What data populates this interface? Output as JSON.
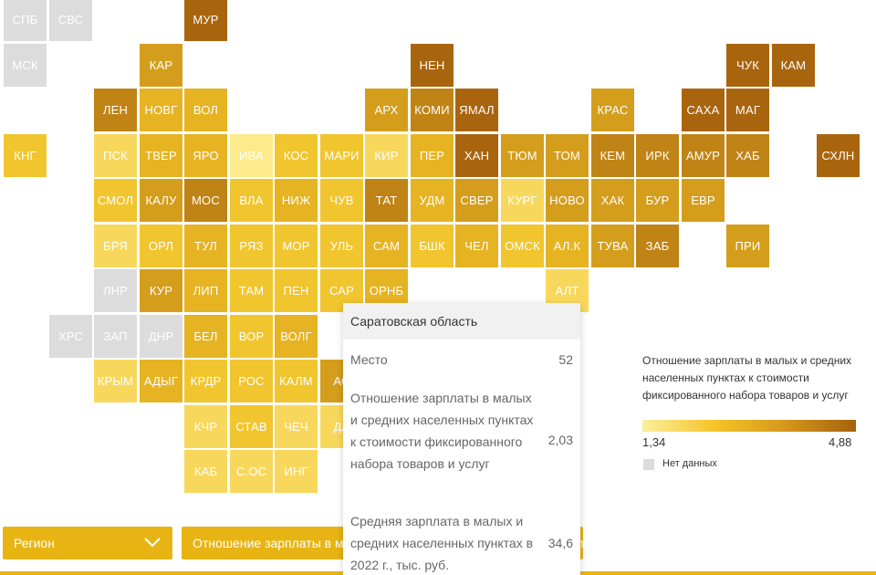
{
  "chart_data": {
    "type": "tile-map",
    "metric": "Отношение зарплаты в малых и средних населенных пунктах к стоимости фиксированного набора товаров и услуг",
    "scale_min": 1.34,
    "scale_max": 4.88,
    "colors": {
      "c0": "#dcdcdc",
      "c1": "#fcea8c",
      "c2": "#f8d85c",
      "c3": "#f1c52e",
      "c4": "#e6b322",
      "c5": "#d49e1c",
      "c6": "#c08316",
      "c7": "#a9640e"
    },
    "tiles": [
      {
        "label": "СПБ",
        "col": 0,
        "row": 0,
        "level": 0
      },
      {
        "label": "СВС",
        "col": 1,
        "row": 0,
        "level": 0
      },
      {
        "label": "МУР",
        "col": 4,
        "row": 0,
        "level": 7
      },
      {
        "label": "МСК",
        "col": 0,
        "row": 1,
        "level": 0
      },
      {
        "label": "КАР",
        "col": 3,
        "row": 1,
        "level": 5
      },
      {
        "label": "НЕН",
        "col": 9,
        "row": 1,
        "level": 7
      },
      {
        "label": "ЧУК",
        "col": 16,
        "row": 1,
        "level": 7
      },
      {
        "label": "КАМ",
        "col": 17,
        "row": 1,
        "level": 7
      },
      {
        "label": "ЛЕН",
        "col": 2,
        "row": 2,
        "level": 6
      },
      {
        "label": "НОВГ",
        "col": 3,
        "row": 2,
        "level": 4
      },
      {
        "label": "ВОЛ",
        "col": 4,
        "row": 2,
        "level": 4
      },
      {
        "label": "АРХ",
        "col": 8,
        "row": 2,
        "level": 5
      },
      {
        "label": "КОМИ",
        "col": 9,
        "row": 2,
        "level": 6
      },
      {
        "label": "ЯМАЛ",
        "col": 10,
        "row": 2,
        "level": 7
      },
      {
        "label": "КРАС",
        "col": 13,
        "row": 2,
        "level": 5
      },
      {
        "label": "САХА",
        "col": 15,
        "row": 2,
        "level": 7
      },
      {
        "label": "МАГ",
        "col": 16,
        "row": 2,
        "level": 7
      },
      {
        "label": "КНГ",
        "col": 0,
        "row": 3,
        "level": 3
      },
      {
        "label": "ПСК",
        "col": 2,
        "row": 3,
        "level": 2
      },
      {
        "label": "ТВЕР",
        "col": 3,
        "row": 3,
        "level": 4
      },
      {
        "label": "ЯРО",
        "col": 4,
        "row": 3,
        "level": 4
      },
      {
        "label": "ИВА",
        "col": 5,
        "row": 3,
        "level": 1
      },
      {
        "label": "КОС",
        "col": 6,
        "row": 3,
        "level": 3
      },
      {
        "label": "МАРИ",
        "col": 7,
        "row": 3,
        "level": 3
      },
      {
        "label": "КИР",
        "col": 8,
        "row": 3,
        "level": 2
      },
      {
        "label": "ПЕР",
        "col": 9,
        "row": 3,
        "level": 4
      },
      {
        "label": "ХАН",
        "col": 10,
        "row": 3,
        "level": 7
      },
      {
        "label": "ТЮМ",
        "col": 11,
        "row": 3,
        "level": 5
      },
      {
        "label": "ТОМ",
        "col": 12,
        "row": 3,
        "level": 5
      },
      {
        "label": "КЕМ",
        "col": 13,
        "row": 3,
        "level": 6
      },
      {
        "label": "ИРК",
        "col": 14,
        "row": 3,
        "level": 6
      },
      {
        "label": "АМУР",
        "col": 15,
        "row": 3,
        "level": 6
      },
      {
        "label": "ХАБ",
        "col": 16,
        "row": 3,
        "level": 6
      },
      {
        "label": "СХЛН",
        "col": 18,
        "row": 3,
        "level": 7
      },
      {
        "label": "СМОЛ",
        "col": 2,
        "row": 4,
        "level": 3
      },
      {
        "label": "КАЛУ",
        "col": 3,
        "row": 4,
        "level": 5
      },
      {
        "label": "МОС",
        "col": 4,
        "row": 4,
        "level": 6
      },
      {
        "label": "ВЛА",
        "col": 5,
        "row": 4,
        "level": 3
      },
      {
        "label": "НИЖ",
        "col": 6,
        "row": 4,
        "level": 4
      },
      {
        "label": "ЧУВ",
        "col": 7,
        "row": 4,
        "level": 3
      },
      {
        "label": "ТАТ",
        "col": 8,
        "row": 4,
        "level": 6
      },
      {
        "label": "УДМ",
        "col": 9,
        "row": 4,
        "level": 4
      },
      {
        "label": "СВЕР",
        "col": 10,
        "row": 4,
        "level": 5
      },
      {
        "label": "КУРГ",
        "col": 11,
        "row": 4,
        "level": 2
      },
      {
        "label": "НОВО",
        "col": 12,
        "row": 4,
        "level": 5
      },
      {
        "label": "ХАК",
        "col": 13,
        "row": 4,
        "level": 5
      },
      {
        "label": "БУР",
        "col": 14,
        "row": 4,
        "level": 5
      },
      {
        "label": "ЕВР",
        "col": 15,
        "row": 4,
        "level": 5
      },
      {
        "label": "БРЯ",
        "col": 2,
        "row": 5,
        "level": 2
      },
      {
        "label": "ОРЛ",
        "col": 3,
        "row": 5,
        "level": 3
      },
      {
        "label": "ТУЛ",
        "col": 4,
        "row": 5,
        "level": 4
      },
      {
        "label": "РЯЗ",
        "col": 5,
        "row": 5,
        "level": 3
      },
      {
        "label": "МОР",
        "col": 6,
        "row": 5,
        "level": 3
      },
      {
        "label": "УЛЬ",
        "col": 7,
        "row": 5,
        "level": 3
      },
      {
        "label": "САМ",
        "col": 8,
        "row": 5,
        "level": 4
      },
      {
        "label": "БШК",
        "col": 9,
        "row": 5,
        "level": 3
      },
      {
        "label": "ЧЕЛ",
        "col": 10,
        "row": 5,
        "level": 4
      },
      {
        "label": "ОМСК",
        "col": 11,
        "row": 5,
        "level": 3
      },
      {
        "label": "АЛ.К",
        "col": 12,
        "row": 5,
        "level": 4
      },
      {
        "label": "ТУВА",
        "col": 13,
        "row": 5,
        "level": 5
      },
      {
        "label": "ЗАБ",
        "col": 14,
        "row": 5,
        "level": 6
      },
      {
        "label": "ПРИ",
        "col": 16,
        "row": 5,
        "level": 5
      },
      {
        "label": "ЛНР",
        "col": 2,
        "row": 6,
        "level": 0
      },
      {
        "label": "КУР",
        "col": 3,
        "row": 6,
        "level": 5
      },
      {
        "label": "ЛИП",
        "col": 4,
        "row": 6,
        "level": 4
      },
      {
        "label": "ТАМ",
        "col": 5,
        "row": 6,
        "level": 3
      },
      {
        "label": "ПЕН",
        "col": 6,
        "row": 6,
        "level": 3
      },
      {
        "label": "САР",
        "col": 7,
        "row": 6,
        "level": 3
      },
      {
        "label": "ОРНБ",
        "col": 8,
        "row": 6,
        "level": 4
      },
      {
        "label": "АЛТ",
        "col": 12,
        "row": 6,
        "level": 2
      },
      {
        "label": "ХРС",
        "col": 1,
        "row": 7,
        "level": 0
      },
      {
        "label": "ЗАП",
        "col": 2,
        "row": 7,
        "level": 0
      },
      {
        "label": "ДНР",
        "col": 3,
        "row": 7,
        "level": 0
      },
      {
        "label": "БЕЛ",
        "col": 4,
        "row": 7,
        "level": 4
      },
      {
        "label": "ВОР",
        "col": 5,
        "row": 7,
        "level": 3
      },
      {
        "label": "ВОЛГ",
        "col": 6,
        "row": 7,
        "level": 4
      },
      {
        "label": "КРЫМ",
        "col": 2,
        "row": 8,
        "level": 2
      },
      {
        "label": "АДЫГ",
        "col": 3,
        "row": 8,
        "level": 4
      },
      {
        "label": "КРДР",
        "col": 4,
        "row": 8,
        "level": 3
      },
      {
        "label": "РОС",
        "col": 5,
        "row": 8,
        "level": 3
      },
      {
        "label": "КАЛМ",
        "col": 6,
        "row": 8,
        "level": 3
      },
      {
        "label": "АС",
        "col": 7,
        "row": 8,
        "level": 5
      },
      {
        "label": "КЧР",
        "col": 4,
        "row": 9,
        "level": 2
      },
      {
        "label": "СТАВ",
        "col": 5,
        "row": 9,
        "level": 3
      },
      {
        "label": "ЧЕЧ",
        "col": 6,
        "row": 9,
        "level": 2
      },
      {
        "label": "ДА",
        "col": 7,
        "row": 9,
        "level": 2
      },
      {
        "label": "КАБ",
        "col": 4,
        "row": 10,
        "level": 2
      },
      {
        "label": "С.ОС",
        "col": 5,
        "row": 10,
        "level": 2
      },
      {
        "label": "ИНГ",
        "col": 6,
        "row": 10,
        "level": 2
      }
    ]
  },
  "tooltip": {
    "title": "Саратовская область",
    "rank_label": "Место",
    "rank_value": "52",
    "ratio_label": "Отношение зарплаты в малых и средних населенных пунктах к стоимости фиксированного набора товаров и услуг",
    "ratio_value": "2,03",
    "salary_label": "Средняя зарплата в малых и средних населенных пунктах в 2022 г., тыс. руб.",
    "salary_value": "34,6"
  },
  "legend": {
    "title": "Отношение зарплаты в малых и средних населенных пунктах к стоимости фиксированного набора товаров и услуг",
    "min_label": "1,34",
    "max_label": "4,88",
    "nodata_label": "Нет данных"
  },
  "controls": {
    "region_label": "Регион",
    "metric_label": "Отношение зарплаты в малых и средних населенных пунктах к стоимости фиксированного набора товаров и услуг"
  }
}
